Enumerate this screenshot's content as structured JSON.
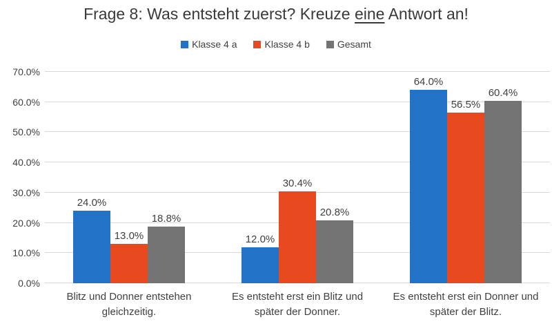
{
  "chart_data": {
    "type": "bar",
    "title": "Frage 8: Was entsteht zuerst? Kreuze eine Antwort an!",
    "title_parts": {
      "before": "Frage 8: Was entsteht zuerst? Kreuze ",
      "underlined": "eine",
      "after": " Antwort an!"
    },
    "categories": [
      "Blitz und Donner entstehen gleichzeitig.",
      "Es entsteht erst ein Blitz und später der Donner.",
      "Es entsteht erst ein Donner und später der Blitz."
    ],
    "series": [
      {
        "name": "Klasse 4 a",
        "color": "#2272C8",
        "values": [
          24.0,
          12.0,
          64.0
        ],
        "labels": [
          "24.0%",
          "12.0%",
          "64.0%"
        ]
      },
      {
        "name": "Klasse 4 b",
        "color": "#E8491E",
        "values": [
          13.0,
          30.4,
          56.5
        ],
        "labels": [
          "13.0%",
          "30.4%",
          "56.5%"
        ]
      },
      {
        "name": "Gesamt",
        "color": "#737373",
        "values": [
          18.8,
          20.8,
          60.4
        ],
        "labels": [
          "18.8%",
          "20.8%",
          "60.4%"
        ]
      }
    ],
    "ylim": [
      0,
      70
    ],
    "ytick_values": [
      0,
      10,
      20,
      30,
      40,
      50,
      60,
      70
    ],
    "ytick_labels": [
      "0.0%",
      "10.0%",
      "20.0%",
      "30.0%",
      "40.0%",
      "50.0%",
      "60.0%",
      "70.0%"
    ],
    "grid": true,
    "legend_position": "top",
    "colors": {
      "grid": "#D9D9D9",
      "text": "#404040",
      "title_text": "#393939",
      "background": "#FFFFFF"
    }
  }
}
